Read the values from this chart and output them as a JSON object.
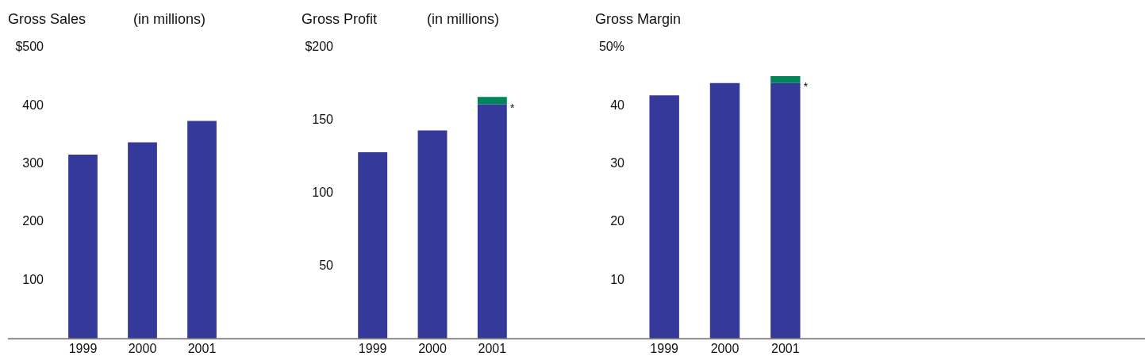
{
  "chart_data": [
    {
      "type": "bar",
      "title": "Gross Sales",
      "subtitle": "(in millions)",
      "categories": [
        "1999",
        "2000",
        "2001"
      ],
      "series": [
        {
          "color": "#35399a",
          "values": [
            316,
            337,
            374
          ]
        }
      ],
      "ylim": [
        0,
        500
      ],
      "yticks": [
        {
          "value": 100,
          "label": "100"
        },
        {
          "value": 200,
          "label": "200"
        },
        {
          "value": 300,
          "label": "300"
        },
        {
          "value": 400,
          "label": "400"
        },
        {
          "value": 500,
          "label": "$500"
        }
      ]
    },
    {
      "type": "bar",
      "title": "Gross Profit",
      "subtitle": "(in millions)",
      "categories": [
        "1999",
        "2000",
        "2001"
      ],
      "stacked": true,
      "series": [
        {
          "color": "#35399a",
          "values": [
            128,
            143,
            161
          ]
        },
        {
          "color": "#00845c",
          "values": [
            null,
            null,
            5
          ]
        }
      ],
      "ylim": [
        0,
        200
      ],
      "yticks": [
        {
          "value": 50,
          "label": "50"
        },
        {
          "value": 100,
          "label": "100"
        },
        {
          "value": 150,
          "label": "150"
        },
        {
          "value": 200,
          "label": "$200"
        }
      ],
      "annotations": [
        {
          "text": "*",
          "x": "2001",
          "y": 161
        }
      ]
    },
    {
      "type": "bar",
      "title": "Gross Margin",
      "categories": [
        "1999",
        "2000",
        "2001"
      ],
      "stacked": true,
      "series": [
        {
          "color": "#35399a",
          "values": [
            41.8,
            43.9,
            43.9
          ]
        },
        {
          "color": "#00845c",
          "values": [
            null,
            null,
            1.2
          ]
        }
      ],
      "ylim": [
        0,
        50
      ],
      "yticks": [
        {
          "value": 10,
          "label": "10"
        },
        {
          "value": 20,
          "label": "20"
        },
        {
          "value": 30,
          "label": "30"
        },
        {
          "value": 40,
          "label": "40"
        },
        {
          "value": 50,
          "label": "50%"
        }
      ],
      "annotations": [
        {
          "text": "*",
          "x": "2001",
          "y": 43.9
        }
      ]
    }
  ]
}
